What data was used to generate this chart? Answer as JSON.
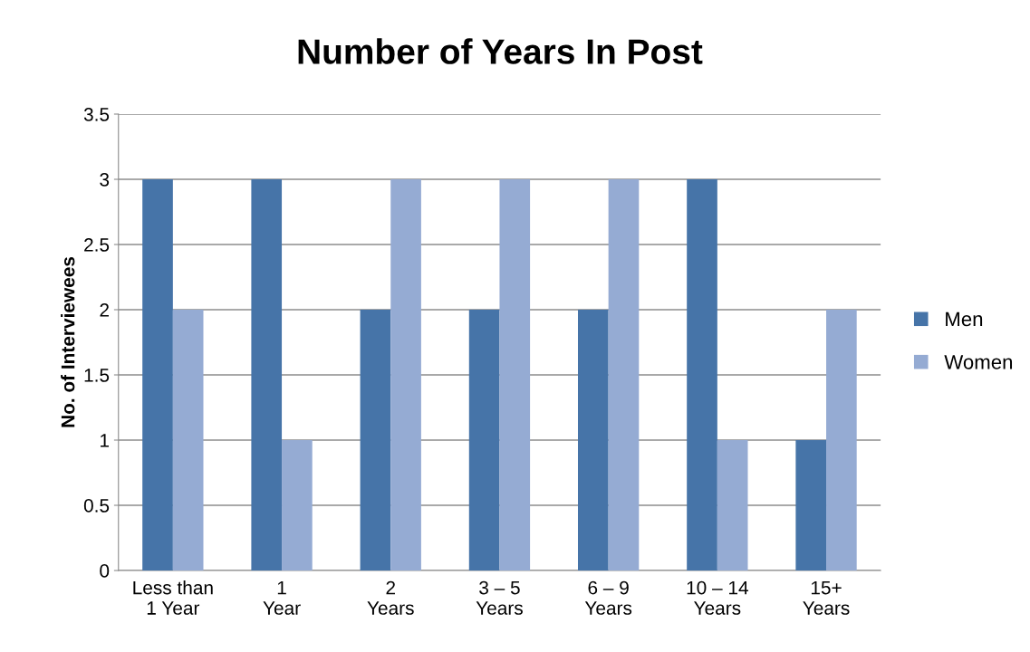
{
  "chart_data": {
    "type": "bar",
    "title": "Number of Years In Post",
    "ylabel": "No. of Interviewees",
    "categories": [
      "Less than\n1 Year",
      "1\nYear",
      "2\nYears",
      "3 – 5\nYears",
      "6 – 9\nYears",
      "10 – 14\nYears",
      "15+\nYears"
    ],
    "series": [
      {
        "name": "Men",
        "color": "#4674a8",
        "values": [
          3,
          3,
          2,
          2,
          2,
          3,
          1
        ]
      },
      {
        "name": "Women",
        "color": "#95abd3",
        "values": [
          2,
          1,
          3,
          3,
          3,
          1,
          2
        ]
      }
    ],
    "ylim": [
      0,
      3.5
    ],
    "yticks": [
      0,
      0.5,
      1,
      1.5,
      2,
      2.5,
      3,
      3.5
    ],
    "grid": "y",
    "legend": "right"
  }
}
